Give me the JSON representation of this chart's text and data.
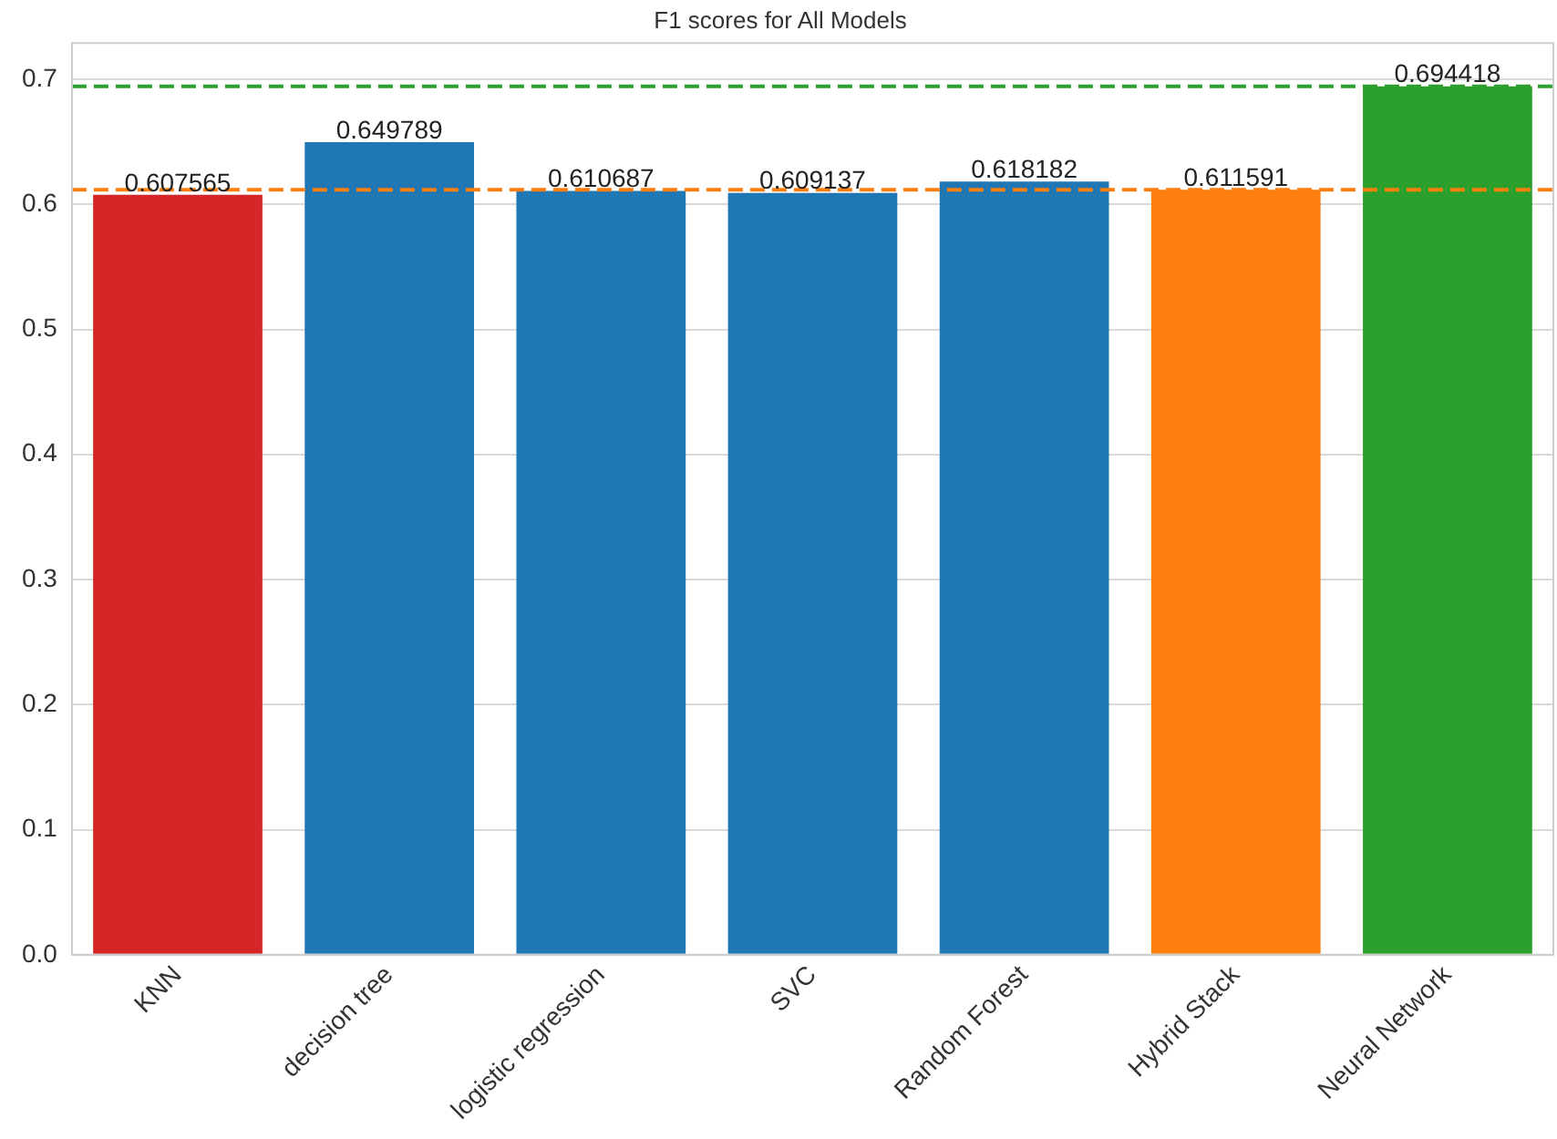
{
  "chart_data": {
    "type": "bar",
    "title": "F1 scores for All Models",
    "categories": [
      "KNN",
      "decision tree",
      "logistic regression",
      "SVC",
      "Random Forest",
      "Hybrid Stack",
      "Neural Network"
    ],
    "values": [
      0.607565,
      0.649789,
      0.610687,
      0.609137,
      0.618182,
      0.611591,
      0.694418
    ],
    "colors": [
      "#d62728",
      "#1f77b4",
      "#1f77b4",
      "#1f77b4",
      "#1f77b4",
      "#ff7f0e",
      "#2ca02c"
    ],
    "data_labels": true,
    "ylim": [
      0,
      0.729
    ],
    "yticks": [
      {
        "value": 0,
        "label": "0.0"
      },
      0.1,
      0.2,
      0.3,
      0.4,
      0.5,
      0.6,
      0.7
    ],
    "ref_lines": [
      {
        "axis": "y",
        "value": 0.694418,
        "color": "#2ca02c",
        "line_style": "dashed"
      },
      {
        "axis": "y",
        "value": 0.611591,
        "color": "#ff7f0e",
        "line_style": "dashed"
      }
    ],
    "grid": "y",
    "legend": false
  }
}
